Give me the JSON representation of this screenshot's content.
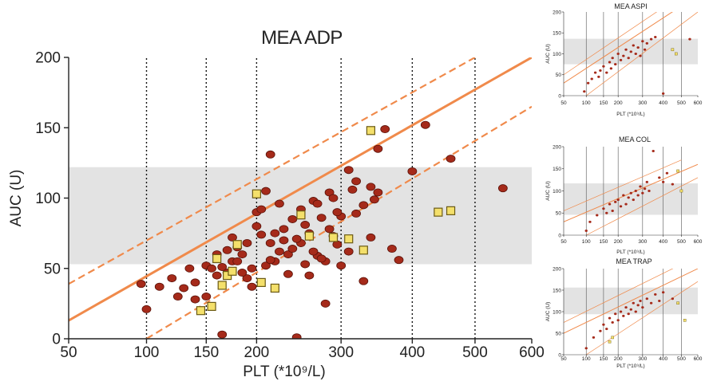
{
  "chart_data": [
    {
      "type": "scatter",
      "title": "MEA ADP",
      "xlabel": "PLT (*10⁹/L)",
      "ylabel": "AUC (U)",
      "x_scale": "sqrt",
      "xlim": [
        50,
        600
      ],
      "ylim": [
        0,
        200
      ],
      "xticks": [
        "50",
        "100",
        "150",
        "200",
        "300",
        "400",
        "500",
        "600"
      ],
      "yticks": [
        "0",
        "50",
        "100",
        "150",
        "200"
      ],
      "vertical_dotted_lines_at": [
        100,
        150,
        200,
        300,
        400,
        500
      ],
      "reference_band": [
        53,
        122
      ],
      "regression": {
        "central": [
          [
            50,
            13
          ],
          [
            600,
            200
          ]
        ],
        "upper_ci": [
          [
            50,
            39
          ],
          [
            500,
            200
          ]
        ],
        "lower_ci": [
          [
            100,
            0
          ],
          [
            600,
            165
          ]
        ]
      },
      "series": [
        {
          "marker": "circle",
          "color": "#a52a1a",
          "points": [
            [
              96,
              39
            ],
            [
              100,
              21
            ],
            [
              110,
              37
            ],
            [
              125,
              30
            ],
            [
              135,
              50
            ],
            [
              140,
              40
            ],
            [
              150,
              52
            ],
            [
              160,
              60
            ],
            [
              165,
              3
            ],
            [
              170,
              47
            ],
            [
              175,
              55
            ],
            [
              180,
              55
            ],
            [
              185,
              60
            ],
            [
              190,
              68
            ],
            [
              195,
              50
            ],
            [
              200,
              80
            ],
            [
              205,
              74
            ],
            [
              210,
              105
            ],
            [
              215,
              131
            ],
            [
              215,
              68
            ],
            [
              220,
              75
            ],
            [
              225,
              96
            ],
            [
              230,
              70
            ],
            [
              235,
              60
            ],
            [
              240,
              64
            ],
            [
              245,
              1
            ],
            [
              250,
              92
            ],
            [
              255,
              81
            ],
            [
              260,
              75
            ],
            [
              265,
              98
            ],
            [
              270,
              96
            ],
            [
              275,
              86
            ],
            [
              280,
              25
            ],
            [
              285,
              104
            ],
            [
              290,
              100
            ],
            [
              295,
              67
            ],
            [
              300,
              87
            ],
            [
              310,
              120
            ],
            [
              315,
              106
            ],
            [
              320,
              89
            ],
            [
              330,
              41
            ],
            [
              340,
              108
            ],
            [
              345,
              99
            ],
            [
              350,
              135
            ],
            [
              360,
              149
            ],
            [
              370,
              64
            ],
            [
              380,
              56
            ],
            [
              400,
              119
            ],
            [
              420,
              152
            ],
            [
              460,
              128
            ],
            [
              548,
              107
            ],
            [
              150,
              30
            ],
            [
              160,
              45
            ],
            [
              170,
              63
            ],
            [
              180,
              65
            ],
            [
              190,
              43
            ],
            [
              200,
              90
            ],
            [
              210,
              52
            ],
            [
              220,
              55
            ],
            [
              230,
              78
            ],
            [
              240,
              85
            ],
            [
              250,
              68
            ],
            [
              260,
              45
            ],
            [
              270,
              59
            ],
            [
              280,
              55
            ],
            [
              290,
              73
            ],
            [
              300,
              52
            ],
            [
              310,
              62
            ],
            [
              320,
              112
            ],
            [
              330,
              95
            ],
            [
              340,
              72
            ],
            [
              350,
              104
            ],
            [
              140,
              28
            ],
            [
              130,
              36
            ],
            [
              120,
              43
            ],
            [
              155,
              50
            ],
            [
              165,
              51
            ],
            [
              175,
              72
            ],
            [
              185,
              47
            ],
            [
              195,
              37
            ],
            [
              205,
              92
            ],
            [
              215,
              56
            ],
            [
              225,
              62
            ],
            [
              235,
              46
            ],
            [
              245,
              71
            ],
            [
              255,
              53
            ],
            [
              265,
              62
            ],
            [
              275,
              57
            ],
            [
              285,
              78
            ],
            [
              295,
              90
            ]
          ]
        },
        {
          "marker": "square",
          "color": "#f4e06b",
          "points": [
            [
              145,
              20
            ],
            [
              155,
              23
            ],
            [
              160,
              57
            ],
            [
              165,
              38
            ],
            [
              170,
              45
            ],
            [
              175,
              48
            ],
            [
              180,
              67
            ],
            [
              200,
              103
            ],
            [
              205,
              40
            ],
            [
              220,
              36
            ],
            [
              250,
              88
            ],
            [
              260,
              73
            ],
            [
              290,
              72
            ],
            [
              310,
              71
            ],
            [
              330,
              63
            ],
            [
              340,
              148
            ],
            [
              440,
              90
            ],
            [
              460,
              91
            ]
          ]
        }
      ]
    },
    {
      "type": "scatter",
      "title": "MEA ASPI",
      "xlabel": "PLT (*10⁹/L)",
      "ylabel": "AUC (U)",
      "x_scale": "sqrt",
      "xlim": [
        50,
        600
      ],
      "ylim": [
        0,
        200
      ],
      "xticks": [
        "50",
        "100",
        "150",
        "200",
        "300",
        "400",
        "500",
        "600"
      ],
      "yticks": [
        "0",
        "50",
        "100",
        "150",
        "200"
      ],
      "vertical_lines_at": [
        100,
        150,
        200,
        300,
        400,
        500
      ],
      "reference_band": [
        75,
        136
      ],
      "regression": {
        "central": [
          [
            50,
            30
          ],
          [
            600,
            240
          ]
        ],
        "upper_ci": [
          [
            50,
            50
          ],
          [
            500,
            240
          ]
        ],
        "lower_ci": [
          [
            100,
            0
          ],
          [
            600,
            200
          ]
        ]
      },
      "series": [
        {
          "marker": "circle",
          "color": "#a52a1a",
          "points": [
            [
              95,
              10
            ],
            [
              105,
              30
            ],
            [
              115,
              40
            ],
            [
              125,
              55
            ],
            [
              135,
              45
            ],
            [
              140,
              60
            ],
            [
              150,
              70
            ],
            [
              160,
              55
            ],
            [
              170,
              80
            ],
            [
              175,
              65
            ],
            [
              180,
              90
            ],
            [
              190,
              75
            ],
            [
              200,
              100
            ],
            [
              210,
              85
            ],
            [
              220,
              95
            ],
            [
              230,
              110
            ],
            [
              240,
              90
            ],
            [
              250,
              105
            ],
            [
              260,
              120
            ],
            [
              270,
              100
            ],
            [
              280,
              115
            ],
            [
              290,
              95
            ],
            [
              300,
              130
            ],
            [
              310,
              110
            ],
            [
              320,
              125
            ],
            [
              340,
              135
            ],
            [
              360,
              140
            ],
            [
              400,
              5
            ],
            [
              550,
              135
            ]
          ]
        },
        {
          "marker": "square",
          "color": "#f4e06b",
          "points": [
            [
              450,
              110
            ],
            [
              470,
              100
            ]
          ]
        }
      ]
    },
    {
      "type": "scatter",
      "title": "MEA COL",
      "xlabel": "PLT (*10⁹/L)",
      "ylabel": "AUC (U)",
      "x_scale": "sqrt",
      "xlim": [
        50,
        600
      ],
      "ylim": [
        0,
        200
      ],
      "xticks": [
        "50",
        "100",
        "150",
        "200",
        "300",
        "400",
        "500",
        "600"
      ],
      "yticks": [
        "0",
        "50",
        "100",
        "150",
        "200"
      ],
      "vertical_lines_at": [
        100,
        150,
        200,
        300,
        400,
        500
      ],
      "reference_band": [
        46,
        117
      ],
      "regression": {
        "central": [
          [
            50,
            30
          ],
          [
            600,
            160
          ]
        ],
        "upper_ci": [
          [
            50,
            55
          ],
          [
            500,
            170
          ]
        ],
        "lower_ci": [
          [
            100,
            0
          ],
          [
            600,
            130
          ]
        ]
      },
      "series": [
        {
          "marker": "circle",
          "color": "#a52a1a",
          "points": [
            [
              100,
              10
            ],
            [
              110,
              30
            ],
            [
              130,
              45
            ],
            [
              150,
              60
            ],
            [
              160,
              50
            ],
            [
              170,
              70
            ],
            [
              180,
              55
            ],
            [
              190,
              75
            ],
            [
              200,
              80
            ],
            [
              210,
              65
            ],
            [
              220,
              90
            ],
            [
              230,
              70
            ],
            [
              240,
              85
            ],
            [
              250,
              95
            ],
            [
              260,
              80
            ],
            [
              270,
              100
            ],
            [
              280,
              90
            ],
            [
              290,
              110
            ],
            [
              300,
              95
            ],
            [
              310,
              105
            ],
            [
              320,
              120
            ],
            [
              330,
              100
            ],
            [
              350,
              190
            ],
            [
              380,
              130
            ],
            [
              400,
              120
            ],
            [
              420,
              140
            ],
            [
              450,
              115
            ]
          ]
        },
        {
          "marker": "square",
          "color": "#f4e06b",
          "points": [
            [
              480,
              145
            ],
            [
              500,
              100
            ]
          ]
        }
      ]
    },
    {
      "type": "scatter",
      "title": "MEA TRAP",
      "xlabel": "PLT (*10⁹/L)",
      "ylabel": "AUC (U)",
      "x_scale": "sqrt",
      "xlim": [
        50,
        600
      ],
      "ylim": [
        0,
        200
      ],
      "xticks": [
        "50",
        "100",
        "150",
        "200",
        "300",
        "400",
        "500",
        "600"
      ],
      "yticks": [
        "0",
        "50",
        "100",
        "150",
        "200"
      ],
      "vertical_lines_at": [
        100,
        150,
        200,
        300,
        400,
        500
      ],
      "reference_band": [
        94,
        156
      ],
      "regression": {
        "central": [
          [
            50,
            50
          ],
          [
            600,
            200
          ]
        ],
        "upper_ci": [
          [
            50,
            75
          ],
          [
            500,
            210
          ]
        ],
        "lower_ci": [
          [
            100,
            0
          ],
          [
            600,
            170
          ]
        ]
      },
      "series": [
        {
          "marker": "circle",
          "color": "#a52a1a",
          "points": [
            [
              100,
              15
            ],
            [
              120,
              40
            ],
            [
              140,
              55
            ],
            [
              150,
              70
            ],
            [
              160,
              60
            ],
            [
              170,
              85
            ],
            [
              180,
              75
            ],
            [
              190,
              95
            ],
            [
              200,
              80
            ],
            [
              210,
              100
            ],
            [
              220,
              90
            ],
            [
              230,
              110
            ],
            [
              240,
              95
            ],
            [
              250,
              105
            ],
            [
              260,
              120
            ],
            [
              270,
              100
            ],
            [
              280,
              115
            ],
            [
              290,
              125
            ],
            [
              300,
              110
            ],
            [
              320,
              130
            ],
            [
              340,
              120
            ],
            [
              360,
              140
            ],
            [
              380,
              125
            ],
            [
              400,
              145
            ],
            [
              450,
              130
            ]
          ]
        },
        {
          "marker": "square",
          "color": "#f4e06b",
          "points": [
            [
              170,
              30
            ],
            [
              180,
              40
            ],
            [
              480,
              120
            ],
            [
              520,
              80
            ]
          ]
        }
      ]
    }
  ]
}
